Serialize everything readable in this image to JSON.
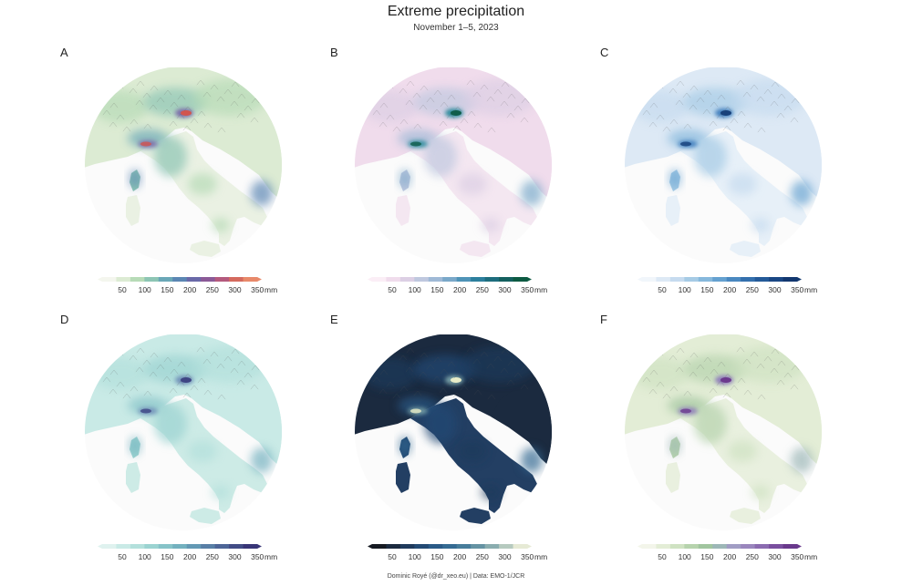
{
  "title": "Extreme precipitation",
  "subtitle": "November 1–5, 2023",
  "caption": "Dominic Royé (@dr_xeo.eu) | Data: EMO-1/JCR",
  "legend_ticks": [
    "50",
    "100",
    "150",
    "200",
    "250",
    "300",
    "350"
  ],
  "legend_unit": "mm",
  "panels": [
    {
      "letter": "A",
      "palette": [
        "#f4f6ee",
        "#dcebd3",
        "#b7dbb7",
        "#8dc5b4",
        "#6aa7b7",
        "#5b86b3",
        "#6a69a8",
        "#8b5a97",
        "#b45a7d",
        "#d46a5e",
        "#e8896a"
      ],
      "hotspot": "#d2554f",
      "hotspot2": "#7c6aa9",
      "sea": "#fbfbfb",
      "land": "#eaf1e3",
      "water": "#ffffff"
    },
    {
      "letter": "B",
      "palette": [
        "#fbeef6",
        "#f0dcec",
        "#dccfe4",
        "#bfc8df",
        "#9fb9d6",
        "#7aa8c9",
        "#4f93b7",
        "#2c7f9d",
        "#1d6d7d",
        "#14605f",
        "#0d5a42"
      ],
      "hotspot": "#0f5d4a",
      "hotspot2": "#2b8a9b",
      "sea": "#fbfbfb",
      "land": "#f4e7f1",
      "water": "#ffffff"
    },
    {
      "letter": "C",
      "palette": [
        "#f1f6fb",
        "#dde9f5",
        "#c6dbef",
        "#a6cbe5",
        "#86b8dc",
        "#65a1d0",
        "#4a88c0",
        "#3470ad",
        "#245a98",
        "#1a4784",
        "#12376f"
      ],
      "hotspot": "#17407a",
      "hotspot2": "#3c7cbc",
      "sea": "#fbfbfb",
      "land": "#e7f0f8",
      "water": "#ffffff"
    },
    {
      "letter": "D",
      "palette": [
        "#dff2ef",
        "#c9eae6",
        "#b3e0dc",
        "#9bd3d1",
        "#86c3c8",
        "#73b1bf",
        "#6399b4",
        "#587fa6",
        "#4d6597",
        "#424c86",
        "#383577"
      ],
      "hotspot": "#3f4584",
      "hotspot2": "#6f8fb8",
      "sea": "#fbfbfb",
      "land": "#cdebe6",
      "water": "#ffffff"
    },
    {
      "letter": "E",
      "palette": [
        "#161a22",
        "#1b2a3f",
        "#1f3a5c",
        "#234a74",
        "#2a5a87",
        "#356b93",
        "#477d9b",
        "#6593a3",
        "#8aadaf",
        "#b6cabf",
        "#e6ead5"
      ],
      "hotspot": "#e8ecc8",
      "hotspot2": "#7aa3a8",
      "sea": "#fbfbfb",
      "land": "#233f63",
      "water": "#ffffff"
    },
    {
      "letter": "F",
      "palette": [
        "#f3f5ea",
        "#e3edd6",
        "#cfe2c2",
        "#b6d3ad",
        "#a1c59f",
        "#9db7b7",
        "#a19dc4",
        "#9a86bd",
        "#8b6bb0",
        "#7a4f9f",
        "#69398c"
      ],
      "hotspot": "#6c3a8e",
      "hotspot2": "#8e7abb",
      "sea": "#fbfbfb",
      "land": "#e9f0df",
      "water": "#ffffff"
    }
  ]
}
